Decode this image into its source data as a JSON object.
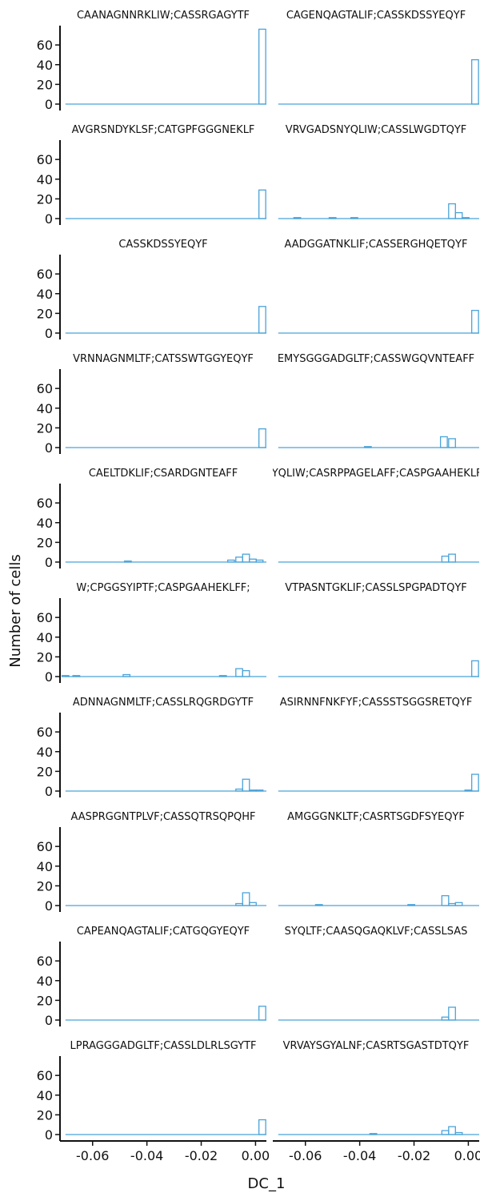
{
  "figure": {
    "ylabel": "Number of cells",
    "xlabel": "DC_1"
  },
  "chart_data": {
    "type": "histogram",
    "shared_ylim": [
      0,
      78
    ],
    "shared_xlim": [
      -0.072,
      0.004
    ],
    "y_ticks": [
      0,
      20,
      40,
      60
    ],
    "x_ticks": [
      -0.06,
      -0.04,
      -0.02,
      0.0
    ],
    "x_tick_labels": [
      "-0.06",
      "-0.04",
      "-0.02",
      "0.00"
    ],
    "bar_color": "#4ba3d9",
    "panels": [
      {
        "title": "CAANAGNNRKLIW;CASSRGAGYTF",
        "bars": [
          {
            "x": 0.0025,
            "count": 76
          }
        ]
      },
      {
        "title": "CAGENQAGTALIF;CASSKDSSYEQYF",
        "bars": [
          {
            "x": 0.0025,
            "count": 45
          }
        ]
      },
      {
        "title": "AVGRSNDYKLSF;CATGPFGGGNEKLF",
        "bars": [
          {
            "x": 0.0025,
            "count": 29
          }
        ]
      },
      {
        "title": "VRVGADSNYQLIW;CASSLWGDTQYF",
        "bars": [
          {
            "x": -0.063,
            "count": 1
          },
          {
            "x": -0.05,
            "count": 1
          },
          {
            "x": -0.042,
            "count": 1
          },
          {
            "x": -0.006,
            "count": 15
          },
          {
            "x": -0.0035,
            "count": 6
          },
          {
            "x": -0.001,
            "count": 1
          }
        ]
      },
      {
        "title": "CASSKDSSYEQYF",
        "bars": [
          {
            "x": 0.0025,
            "count": 27
          }
        ]
      },
      {
        "title": "AADGGATNKLIF;CASSERGHQETQYF",
        "bars": [
          {
            "x": 0.0025,
            "count": 23
          }
        ]
      },
      {
        "title": "VRNNAGNMLTF;CATSSWTGGYEQYF",
        "bars": [
          {
            "x": 0.0025,
            "count": 19
          }
        ]
      },
      {
        "title": "EMYSGGGADGLTF;CASSWGQVNTEAFF",
        "bars": [
          {
            "x": -0.037,
            "count": 1
          },
          {
            "x": -0.009,
            "count": 11
          },
          {
            "x": -0.006,
            "count": 9
          }
        ]
      },
      {
        "title": "CAELTDKLIF;CSARDGNTEAFF",
        "bars": [
          {
            "x": -0.047,
            "count": 1
          },
          {
            "x": -0.009,
            "count": 2
          },
          {
            "x": -0.006,
            "count": 5
          },
          {
            "x": -0.0035,
            "count": 8
          },
          {
            "x": -0.001,
            "count": 3
          },
          {
            "x": 0.0015,
            "count": 2
          }
        ]
      },
      {
        "title": "NYQLIW;CASRPPAGELAFF;CASPGAAHEKLFF",
        "bars": [
          {
            "x": -0.0085,
            "count": 6
          },
          {
            "x": -0.006,
            "count": 8
          }
        ]
      },
      {
        "title": "W;CPGGSYIPTF;CASPGAAHEKLFF;",
        "bars": [
          {
            "x": -0.07,
            "count": 1
          },
          {
            "x": -0.066,
            "count": 1
          },
          {
            "x": -0.0475,
            "count": 2
          },
          {
            "x": -0.012,
            "count": 1
          },
          {
            "x": -0.006,
            "count": 8
          },
          {
            "x": -0.0035,
            "count": 6
          }
        ]
      },
      {
        "title": "VTPASNTGKLIF;CASSLSPGPADTQYF",
        "bars": [
          {
            "x": 0.0025,
            "count": 16
          }
        ]
      },
      {
        "title": "ADNNAGNMLTF;CASSLRQGRDGYTF",
        "bars": [
          {
            "x": -0.006,
            "count": 2
          },
          {
            "x": -0.0035,
            "count": 12
          },
          {
            "x": -0.001,
            "count": 1
          },
          {
            "x": 0.0015,
            "count": 1
          }
        ]
      },
      {
        "title": "ASIRNNFNKFYF;CASSSTSGGSRETQYF",
        "bars": [
          {
            "x": 0.0,
            "count": 1
          },
          {
            "x": 0.0025,
            "count": 17
          }
        ]
      },
      {
        "title": "AASPRGGNTPLVF;CASSQTRSQPQHF",
        "bars": [
          {
            "x": -0.006,
            "count": 2
          },
          {
            "x": -0.0035,
            "count": 13
          },
          {
            "x": -0.001,
            "count": 3
          }
        ]
      },
      {
        "title": "AMGGGNKLTF;CASRTSGDFSYEQYF",
        "bars": [
          {
            "x": -0.055,
            "count": 1
          },
          {
            "x": -0.021,
            "count": 1
          },
          {
            "x": -0.0085,
            "count": 10
          },
          {
            "x": -0.006,
            "count": 2
          },
          {
            "x": -0.0035,
            "count": 3
          }
        ]
      },
      {
        "title": "CAPEANQAGTALIF;CATGQGYEQYF",
        "bars": [
          {
            "x": 0.0025,
            "count": 14
          }
        ]
      },
      {
        "title": "SYQLTF;CAASQGAQKLVF;CASSLSAS",
        "bars": [
          {
            "x": -0.0085,
            "count": 3
          },
          {
            "x": -0.006,
            "count": 13
          }
        ]
      },
      {
        "title": "LPRAGGGADGLTF;CASSLDLRLSGYTF",
        "bars": [
          {
            "x": 0.0025,
            "count": 15
          }
        ]
      },
      {
        "title": "VRVAYSGYALNF;CASRTSGASTDTQYF",
        "bars": [
          {
            "x": -0.035,
            "count": 1
          },
          {
            "x": -0.0085,
            "count": 4
          },
          {
            "x": -0.006,
            "count": 8
          },
          {
            "x": -0.0035,
            "count": 2
          }
        ]
      }
    ]
  }
}
